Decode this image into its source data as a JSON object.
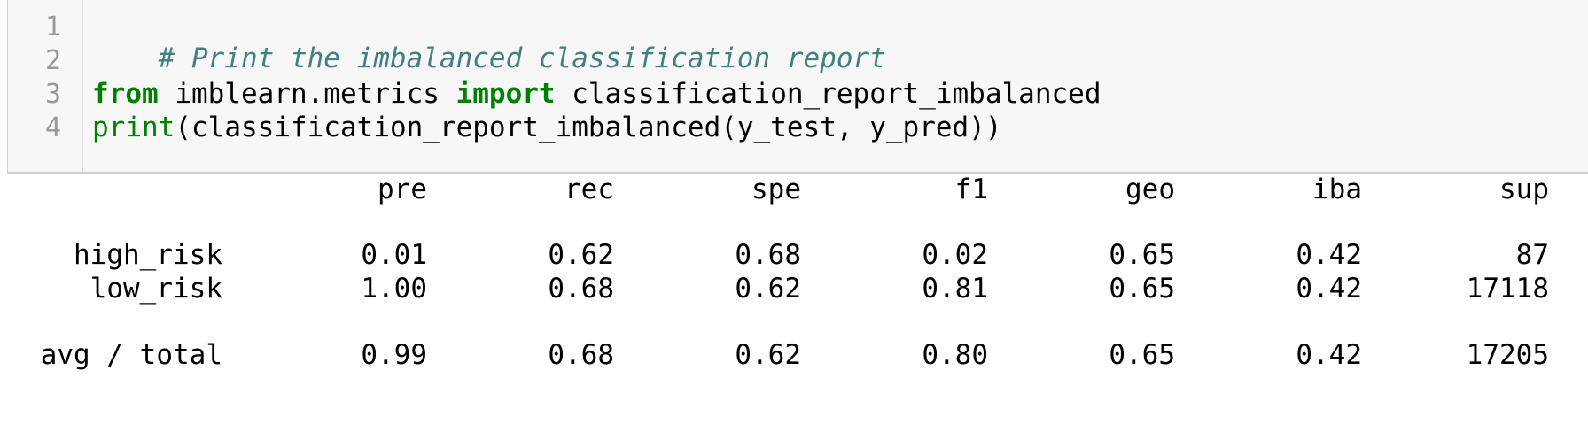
{
  "code_cell": {
    "line_numbers": [
      "1",
      "2",
      "3",
      "4"
    ],
    "line1": {
      "comment": "# Print the imbalanced classification report"
    },
    "line3": {
      "kw_from": "from",
      "module": " imblearn.metrics ",
      "kw_import": "import",
      "name": " classification_report_imbalanced"
    },
    "line4": {
      "builtin_print": "print",
      "rest": "(classification_report_imbalanced(y_test, y_pred))"
    }
  },
  "output": {
    "headers": [
      "pre",
      "rec",
      "spe",
      "f1",
      "geo",
      "iba",
      "sup"
    ],
    "rows": [
      {
        "label": "high_risk",
        "values": [
          "0.01",
          "0.62",
          "0.68",
          "0.02",
          "0.65",
          "0.42",
          "87"
        ]
      },
      {
        "label": "low_risk",
        "values": [
          "1.00",
          "0.68",
          "0.62",
          "0.81",
          "0.65",
          "0.42",
          "17118"
        ]
      },
      {
        "label": "avg / total",
        "values": [
          "0.99",
          "0.68",
          "0.62",
          "0.80",
          "0.65",
          "0.42",
          "17205"
        ]
      }
    ]
  },
  "colors": {
    "comment": "#408080",
    "keyword": "#008000",
    "cell_background": "#f7f7f7",
    "line_number": "#999999"
  }
}
